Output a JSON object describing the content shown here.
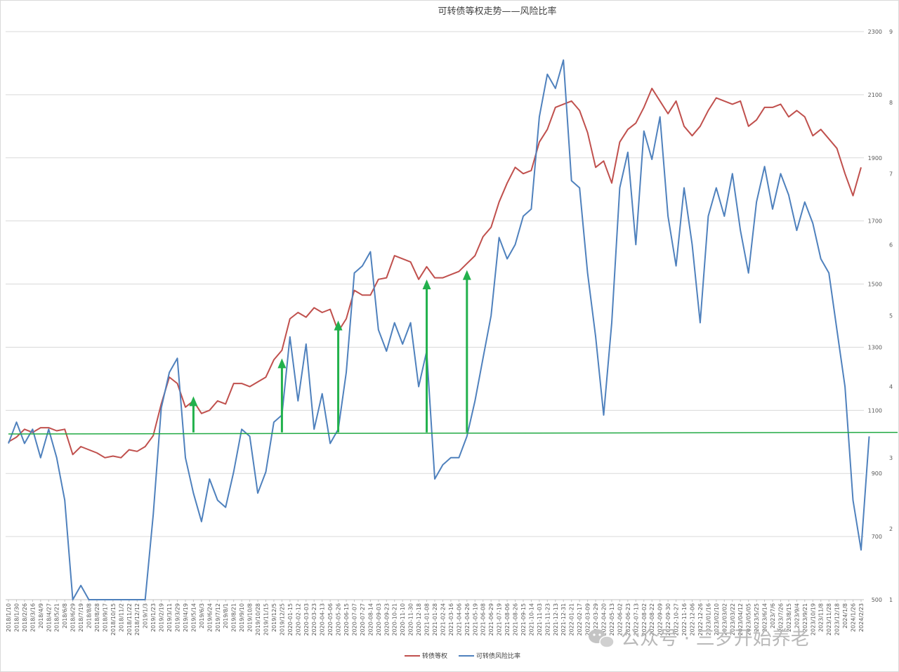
{
  "chart_data": {
    "type": "line",
    "title": "可转债等权走势——风险比率",
    "x_ticks": [
      "2018/1/10",
      "2018/1/30",
      "2018/2/26",
      "2018/3/16",
      "2018/4/9",
      "2018/4/27",
      "2018/5/21",
      "2018/6/8",
      "2018/6/29",
      "2018/7/19",
      "2018/8/8",
      "2018/8/28",
      "2018/9/17",
      "2018/10/15",
      "2018/11/2",
      "2018/11/22",
      "2018/12/12",
      "2019/1/3",
      "2019/1/23",
      "2019/2/19",
      "2019/3/11",
      "2019/3/29",
      "2019/4/19",
      "2019/5/14",
      "2019/6/3",
      "2019/6/24",
      "2019/7/12",
      "2019/8/1",
      "2019/8/21",
      "2019/9/10",
      "2019/10/8",
      "2019/10/28",
      "2019/11/15",
      "2019/12/5",
      "2019/12/25",
      "2020-01-15",
      "2020-02-12",
      "2020-03-03",
      "2020-03-23",
      "2020-04-13",
      "2020-05-06",
      "2020-05-26",
      "2020-06-15",
      "2020-07-07",
      "2020-07-27",
      "2020-08-14",
      "2020-09-03",
      "2020-09-23",
      "2020-10-21",
      "2020-11-10",
      "2020-11-30",
      "2020-12-18",
      "2021-01-08",
      "2021-01-28",
      "2021-02-24",
      "2021-03-16",
      "2021-04-06",
      "2021-04-26",
      "2021-05-19",
      "2021-06-08",
      "2021-06-29",
      "2021-07-19",
      "2021-08-06",
      "2021-08-26",
      "2021-09-15",
      "2021-10-14",
      "2021-11-03",
      "2021-11-23",
      "2021-12-13",
      "2021-12-31",
      "2022-01-21",
      "2022-02-17",
      "2022-03-09",
      "2022-03-29",
      "2022-04-20",
      "2022-05-13",
      "2022-06-02",
      "2022-06-23",
      "2022-07-13",
      "2022-08-02",
      "2022-08-22",
      "2022-09-09",
      "2022-09-30",
      "2022-10-27",
      "2022-11-16",
      "2022-12-06",
      "2022-12-26",
      "2023/01/16",
      "2023/02/10",
      "2023/03/02",
      "2023/03/22",
      "2023/04/12",
      "2023/05/05",
      "2023/5/25",
      "2023/6/14",
      "2023/7/6",
      "2023/7/26",
      "2023/8/15",
      "2023/9/4",
      "2023/9/21",
      "2023/10/19",
      "2023/11/8",
      "2023/11/28",
      "2023/12/18",
      "2024/1/8",
      "2024/1/26",
      "2024/2/23"
    ],
    "y_left": {
      "min": 500,
      "max": 2300,
      "ticks": [
        500,
        700,
        900,
        1100,
        1300,
        1500,
        1700,
        1900,
        2100,
        2300
      ]
    },
    "y_right": {
      "min": 1,
      "max": 9,
      "ticks": [
        1,
        2,
        3,
        4,
        5,
        6,
        7,
        8,
        9
      ]
    },
    "grid": true,
    "legend_position": "bottom",
    "series": [
      {
        "name": "转债等权",
        "color": "#c0504d",
        "axis": "left",
        "values": [
          1000,
          1015,
          1040,
          1030,
          1045,
          1045,
          1035,
          1040,
          960,
          985,
          975,
          965,
          950,
          955,
          950,
          975,
          970,
          985,
          1020,
          1120,
          1205,
          1185,
          1110,
          1130,
          1090,
          1100,
          1130,
          1120,
          1185,
          1185,
          1175,
          1190,
          1205,
          1260,
          1290,
          1390,
          1410,
          1395,
          1425,
          1410,
          1420,
          1350,
          1390,
          1480,
          1465,
          1465,
          1515,
          1520,
          1590,
          1580,
          1570,
          1515,
          1555,
          1520,
          1520,
          1530,
          1540,
          1565,
          1590,
          1650,
          1680,
          1760,
          1820,
          1870,
          1850,
          1860,
          1950,
          1990,
          2060,
          2070,
          2080,
          2050,
          1980,
          1870,
          1890,
          1820,
          1950,
          1990,
          2010,
          2060,
          2120,
          2080,
          2040,
          2080,
          2000,
          1970,
          2000,
          2050,
          2090,
          2080,
          2070,
          2080,
          2000,
          2020,
          2060,
          2060,
          2070,
          2030,
          2050,
          2030,
          1970,
          1990,
          1960,
          1930,
          1850,
          1780,
          1870
        ]
      },
      {
        "name": "可转债风险比率",
        "color": "#4f81bd",
        "axis": "right",
        "values": [
          3.2,
          3.5,
          3.2,
          3.4,
          3.0,
          3.4,
          3.0,
          2.4,
          1.0,
          1.2,
          1.0,
          1.0,
          1.0,
          0.9,
          0.9,
          0.9,
          0.9,
          1.0,
          2.2,
          3.7,
          4.2,
          4.4,
          3.0,
          2.5,
          2.1,
          2.7,
          2.4,
          2.3,
          2.8,
          3.4,
          3.3,
          2.5,
          2.8,
          3.5,
          3.6,
          4.7,
          3.8,
          4.6,
          3.4,
          3.9,
          3.2,
          3.4,
          4.2,
          5.6,
          5.7,
          5.9,
          4.8,
          4.5,
          4.9,
          4.6,
          4.9,
          4.0,
          4.5,
          2.7,
          2.9,
          3.0,
          3.0,
          3.3,
          3.8,
          4.4,
          5.0,
          6.1,
          5.8,
          6.0,
          6.4,
          6.5,
          7.8,
          8.4,
          8.2,
          8.6,
          6.9,
          6.8,
          5.6,
          4.7,
          3.6,
          4.9,
          6.8,
          7.3,
          6.0,
          7.6,
          7.2,
          7.8,
          6.4,
          5.7,
          6.8,
          6.0,
          4.9,
          6.4,
          6.8,
          6.4,
          7.0,
          6.2,
          5.6,
          6.6,
          7.1,
          6.5,
          7.0,
          6.7,
          6.2,
          6.6,
          6.3,
          5.8,
          5.6,
          4.8,
          4.0,
          2.4,
          1.7,
          3.3
        ]
      }
    ],
    "annotation_lines": [
      {
        "color": "#22aa44",
        "axis": "left",
        "from": 0,
        "to": 106,
        "y_from": 1025,
        "y_to": 1030
      }
    ],
    "annotations": [
      {
        "type": "arrow",
        "color": "#22b14c",
        "x": 23,
        "axis": "left",
        "y_from": 1030,
        "y_to": 1140
      },
      {
        "type": "arrow",
        "color": "#22b14c",
        "x": 34,
        "axis": "left",
        "y_from": 1030,
        "y_to": 1260
      },
      {
        "type": "arrow",
        "color": "#22b14c",
        "x": 41,
        "axis": "left",
        "y_from": 1030,
        "y_to": 1380
      },
      {
        "type": "arrow",
        "color": "#22b14c",
        "x": 52,
        "axis": "left",
        "y_from": 1030,
        "y_to": 1510
      },
      {
        "type": "arrow",
        "color": "#22b14c",
        "x": 57,
        "axis": "left",
        "y_from": 1030,
        "y_to": 1540
      }
    ]
  },
  "watermark": {
    "text": "公众号 · 三岁开始养老",
    "icon": "wechat-icon"
  }
}
